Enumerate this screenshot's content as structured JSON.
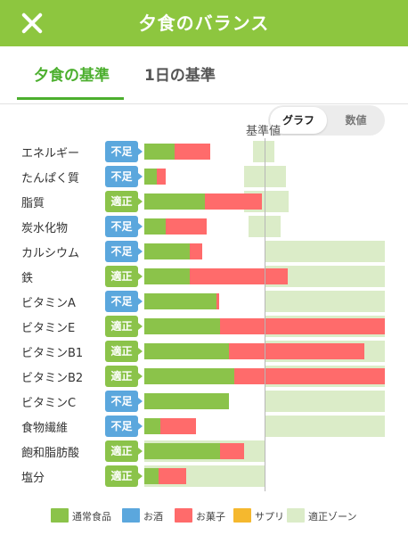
{
  "header": {
    "title": "夕食のバランス"
  },
  "tabs": [
    {
      "label": "夕食の基準",
      "active": true
    },
    {
      "label": "1日の基準",
      "active": false
    }
  ],
  "view_toggle": {
    "options": [
      "グラフ",
      "数値"
    ],
    "selected": "グラフ"
  },
  "chart_data": {
    "type": "bar",
    "orientation": "horizontal",
    "stacked": true,
    "reference_label": "基準値",
    "scale_note": "values are fractions of the reference (基準値) value",
    "categories": [
      "エネルギー",
      "たんぱく質",
      "脂質",
      "炭水化物",
      "カルシウム",
      "鉄",
      "ビタミンA",
      "ビタミンE",
      "ビタミンB1",
      "ビタミンB2",
      "ビタミンC",
      "食物繊維",
      "飽和脂肪酸",
      "塩分"
    ],
    "status": [
      "不足",
      "不足",
      "適正",
      "不足",
      "不足",
      "適正",
      "不足",
      "適正",
      "適正",
      "適正",
      "不足",
      "不足",
      "適正",
      "適正"
    ],
    "series": [
      {
        "name": "通常食品",
        "values": [
          0.25,
          0.1,
          0.5,
          0.18,
          0.38,
          0.38,
          0.6,
          0.63,
          0.7,
          0.75,
          0.7,
          0.13,
          0.63,
          0.12
        ]
      },
      {
        "name": "お菓子",
        "values": [
          0.3,
          0.08,
          0.48,
          0.34,
          0.1,
          0.81,
          0.02,
          1.37,
          1.13,
          1.25,
          0.0,
          0.3,
          0.2,
          0.23
        ]
      }
    ],
    "zones": [
      [
        0.9,
        1.08
      ],
      [
        0.83,
        1.18
      ],
      [
        0.83,
        1.2
      ],
      [
        0.87,
        1.13
      ],
      [
        1.0,
        2.0
      ],
      [
        1.0,
        2.0
      ],
      [
        1.0,
        2.0
      ],
      [
        1.0,
        2.0
      ],
      [
        1.0,
        2.0
      ],
      [
        1.0,
        2.0
      ],
      [
        1.0,
        2.0
      ],
      [
        1.0,
        2.0
      ],
      [
        0.0,
        1.0
      ],
      [
        0.0,
        1.0
      ]
    ],
    "xlim": [
      0,
      2.0
    ],
    "legend": [
      {
        "name": "通常食品",
        "color": "#8bc34a"
      },
      {
        "name": "お酒",
        "color": "#5ba7dd"
      },
      {
        "name": "お菓子",
        "color": "#ff6b6b"
      },
      {
        "name": "サプリ",
        "color": "#f5b82e"
      },
      {
        "name": "適正ゾーン",
        "color": "#dbecc8"
      }
    ],
    "status_colors": {
      "不足": "#5ba7dd",
      "適正": "#8bc34a"
    }
  },
  "colors": {
    "brand": "#8dc63f",
    "active_tab": "#4caf2e"
  },
  "icons": {
    "close": "close-icon"
  }
}
